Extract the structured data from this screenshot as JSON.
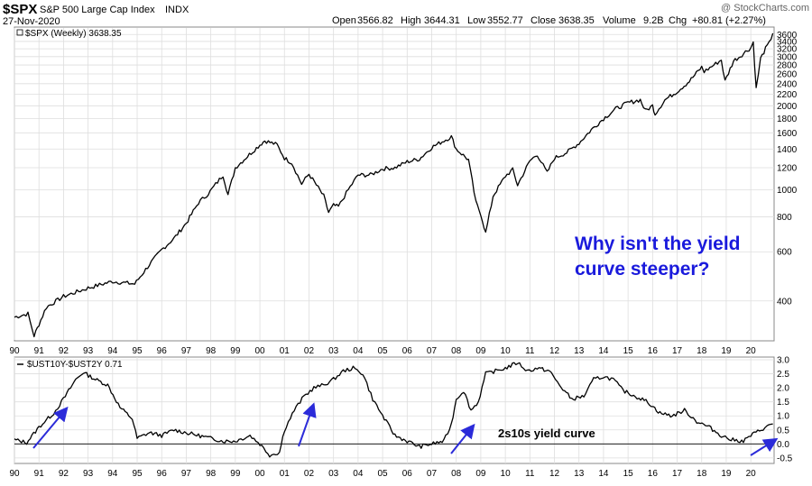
{
  "header": {
    "symbol": "$SPX",
    "name": "S&P 500 Large Cap Index",
    "exchange": "INDX",
    "date": "27-Nov-2020",
    "watermark": "@ StockCharts.com",
    "open_label": "Open",
    "open": "3566.82",
    "high_label": "High",
    "high": "3644.31",
    "low_label": "Low",
    "low": "3552.77",
    "close_label": "Close",
    "close": "3638.35",
    "volume_label": "Volume",
    "volume": "9.2B",
    "chg_label": "Chg",
    "chg": "+80.81 (+2.27%)"
  },
  "colors": {
    "price": "#000000",
    "annotation": "#1a1adc",
    "arrow": "#2b2bd9",
    "grid": "#d4d4d4",
    "zero_line": "#000000"
  },
  "chart_data": [
    {
      "type": "line",
      "legend": "$SPX (Weekly) 3638.35",
      "scale": "log",
      "ylim": [
        290,
        3800
      ],
      "y_ticks": [
        "3600",
        "3400",
        "3200",
        "3000",
        "2800",
        "2600",
        "2400",
        "2200",
        "2000",
        "1800",
        "1600",
        "1400",
        "1200",
        "1000",
        "800",
        "600",
        "400"
      ],
      "x_ticks": [
        "90",
        "91",
        "92",
        "93",
        "94",
        "95",
        "96",
        "97",
        "98",
        "99",
        "00",
        "01",
        "02",
        "03",
        "04",
        "05",
        "06",
        "07",
        "08",
        "09",
        "10",
        "11",
        "12",
        "13",
        "14",
        "15",
        "16",
        "17",
        "18",
        "19",
        "20"
      ],
      "x": [
        1990.0,
        1990.55,
        1990.8,
        1991.0,
        1991.3,
        1992.0,
        1993.0,
        1994.0,
        1994.9,
        1995.5,
        1996.0,
        1996.5,
        1997.0,
        1997.5,
        1997.9,
        1998.5,
        1998.7,
        1999.0,
        1999.5,
        2000.0,
        2000.2,
        2000.7,
        2001.0,
        2001.3,
        2001.7,
        2002.0,
        2002.6,
        2002.8,
        2003.0,
        2003.2,
        2003.6,
        2004.0,
        2004.5,
        2005.0,
        2005.5,
        2006.0,
        2006.5,
        2007.0,
        2007.5,
        2007.8,
        2008.0,
        2008.5,
        2008.8,
        2009.0,
        2009.2,
        2009.5,
        2010.0,
        2010.3,
        2010.5,
        2011.0,
        2011.3,
        2011.7,
        2012.0,
        2012.5,
        2013.0,
        2013.5,
        2014.0,
        2014.5,
        2015.0,
        2015.5,
        2015.7,
        2016.0,
        2016.1,
        2016.5,
        2017.0,
        2017.5,
        2018.0,
        2018.1,
        2018.8,
        2018.95,
        2019.3,
        2019.5,
        2020.0,
        2020.1,
        2020.22,
        2020.4,
        2020.6,
        2020.75,
        2020.9
      ],
      "values": [
        350,
        360,
        300,
        330,
        380,
        415,
        445,
        470,
        460,
        540,
        610,
        670,
        760,
        900,
        970,
        1130,
        960,
        1200,
        1320,
        1450,
        1500,
        1450,
        1300,
        1250,
        1050,
        1140,
        950,
        830,
        880,
        870,
        1000,
        1130,
        1130,
        1190,
        1200,
        1260,
        1290,
        1420,
        1500,
        1550,
        1400,
        1280,
        900,
        820,
        700,
        950,
        1120,
        1180,
        1040,
        1270,
        1340,
        1150,
        1300,
        1360,
        1470,
        1640,
        1800,
        1950,
        2050,
        2100,
        1920,
        2000,
        1870,
        2100,
        2250,
        2450,
        2750,
        2650,
        2920,
        2450,
        2900,
        2980,
        3230,
        3380,
        2300,
        2950,
        3200,
        3350,
        3638
      ]
    },
    {
      "type": "line",
      "legend": "$UST10Y-$UST2Y 0.71",
      "ylim": [
        -0.6,
        3.0
      ],
      "y_ticks": [
        "3.0",
        "2.5",
        "2.0",
        "1.5",
        "1.0",
        "0.5",
        "0.0",
        "-0.5"
      ],
      "x_ticks": [
        "90",
        "91",
        "92",
        "93",
        "94",
        "95",
        "96",
        "97",
        "98",
        "99",
        "00",
        "01",
        "02",
        "03",
        "04",
        "05",
        "06",
        "07",
        "08",
        "09",
        "10",
        "11",
        "12",
        "13",
        "14",
        "15",
        "16",
        "17",
        "18",
        "19",
        "20"
      ],
      "x": [
        1990.0,
        1990.5,
        1991.0,
        1991.6,
        1992.0,
        1992.5,
        1992.8,
        1993.3,
        1993.8,
        1994.3,
        1994.8,
        1995.0,
        1995.5,
        1996.0,
        1996.5,
        1997.0,
        1997.5,
        1998.0,
        1998.5,
        1999.0,
        1999.6,
        2000.0,
        2000.4,
        2000.8,
        2001.0,
        2001.4,
        2001.8,
        2002.2,
        2002.6,
        2003.0,
        2003.4,
        2003.8,
        2004.2,
        2004.6,
        2005.0,
        2005.5,
        2006.0,
        2006.5,
        2007.0,
        2007.5,
        2007.8,
        2008.0,
        2008.3,
        2008.6,
        2008.9,
        2009.2,
        2009.6,
        2010.0,
        2010.5,
        2010.9,
        2011.3,
        2011.8,
        2012.2,
        2012.7,
        2013.2,
        2013.6,
        2014.0,
        2014.4,
        2014.8,
        2015.3,
        2015.8,
        2016.3,
        2016.8,
        2017.3,
        2017.8,
        2018.3,
        2018.8,
        2019.2,
        2019.7,
        2020.0,
        2020.5,
        2020.9
      ],
      "values": [
        0.15,
        0.05,
        0.6,
        1.1,
        1.6,
        2.3,
        2.55,
        2.3,
        2.1,
        1.3,
        0.9,
        0.2,
        0.4,
        0.3,
        0.5,
        0.4,
        0.3,
        0.2,
        0.1,
        0.1,
        0.3,
        0.0,
        -0.4,
        -0.3,
        0.5,
        1.2,
        1.7,
        2.0,
        2.1,
        2.3,
        2.6,
        2.7,
        2.5,
        1.6,
        1.0,
        0.3,
        0.1,
        -0.1,
        0.0,
        0.1,
        0.7,
        1.6,
        1.9,
        1.2,
        1.5,
        2.5,
        2.6,
        2.7,
        2.9,
        2.6,
        2.7,
        2.6,
        2.1,
        1.6,
        1.7,
        2.3,
        2.4,
        2.3,
        1.9,
        1.7,
        1.5,
        1.1,
        1.0,
        1.2,
        0.8,
        0.6,
        0.3,
        0.15,
        0.1,
        0.3,
        0.55,
        0.71
      ],
      "zero_line": 0.0
    }
  ],
  "annotations": {
    "question_line1": "Why isn't the yield",
    "question_line2": "curve steeper?",
    "curve_label": "2s10s yield curve"
  }
}
